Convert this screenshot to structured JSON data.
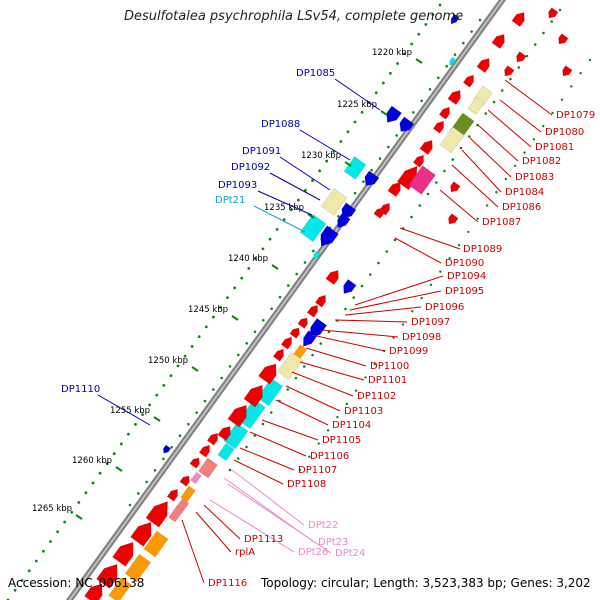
{
  "title": "Desulfotalea psychrophila LSv54, complete genome",
  "footer": {
    "accession_label": "Accession:",
    "accession": "NC_006138",
    "topology_label": "Topology:",
    "topology": "circular",
    "length_label": "Length:",
    "length": "3,523,383 bp",
    "genes_label": "Genes:",
    "genes": "3,202"
  },
  "scale": {
    "unit": "kbp",
    "ticks": [
      "1220 kbp",
      "1225 kbp",
      "1230 kbp",
      "1235 kbp",
      "1240 kbp",
      "1245 kbp",
      "1250 kbp",
      "1255 kbp",
      "1260 kbp",
      "1265 kbp"
    ]
  },
  "colors": {
    "backbone": "#808080",
    "red_gene": "#ee0000",
    "blue_gene": "#0000dd",
    "cyan_gene": "#00e8e8",
    "olive_gene": "#6b8e23",
    "khaki_gene": "#eee8aa",
    "pink_gene": "#e8308a",
    "light_pink": "#f08080",
    "orange_gene": "#ff9900",
    "dot_green": "#0a8a0a",
    "red_label": "#cc0000",
    "blue_label": "#0000aa",
    "cyan_label": "#00aacc",
    "pink_label": "#ee88cc"
  },
  "left_labels": [
    "DP1085",
    "DP1088",
    "DP1091",
    "DP1092",
    "DP1093",
    "DPt21",
    "DP1110"
  ],
  "right_labels": [
    "DP1079",
    "DP1080",
    "DP1081",
    "DP1082",
    "DP1083",
    "DP1084",
    "DP1086",
    "DP1087",
    "DP1089",
    "DP1090",
    "DP1094",
    "DP1095",
    "DP1096",
    "DP1097",
    "DP1098",
    "DP1099",
    "DP1100",
    "DP1101",
    "DP1102",
    "DP1103",
    "DP1104",
    "DP1105",
    "DP1106",
    "DP1107",
    "DP1108",
    "DPt22",
    "DPt23",
    "DPt24",
    "DPt26",
    "DP1113",
    "rplA",
    "DP1116"
  ]
}
